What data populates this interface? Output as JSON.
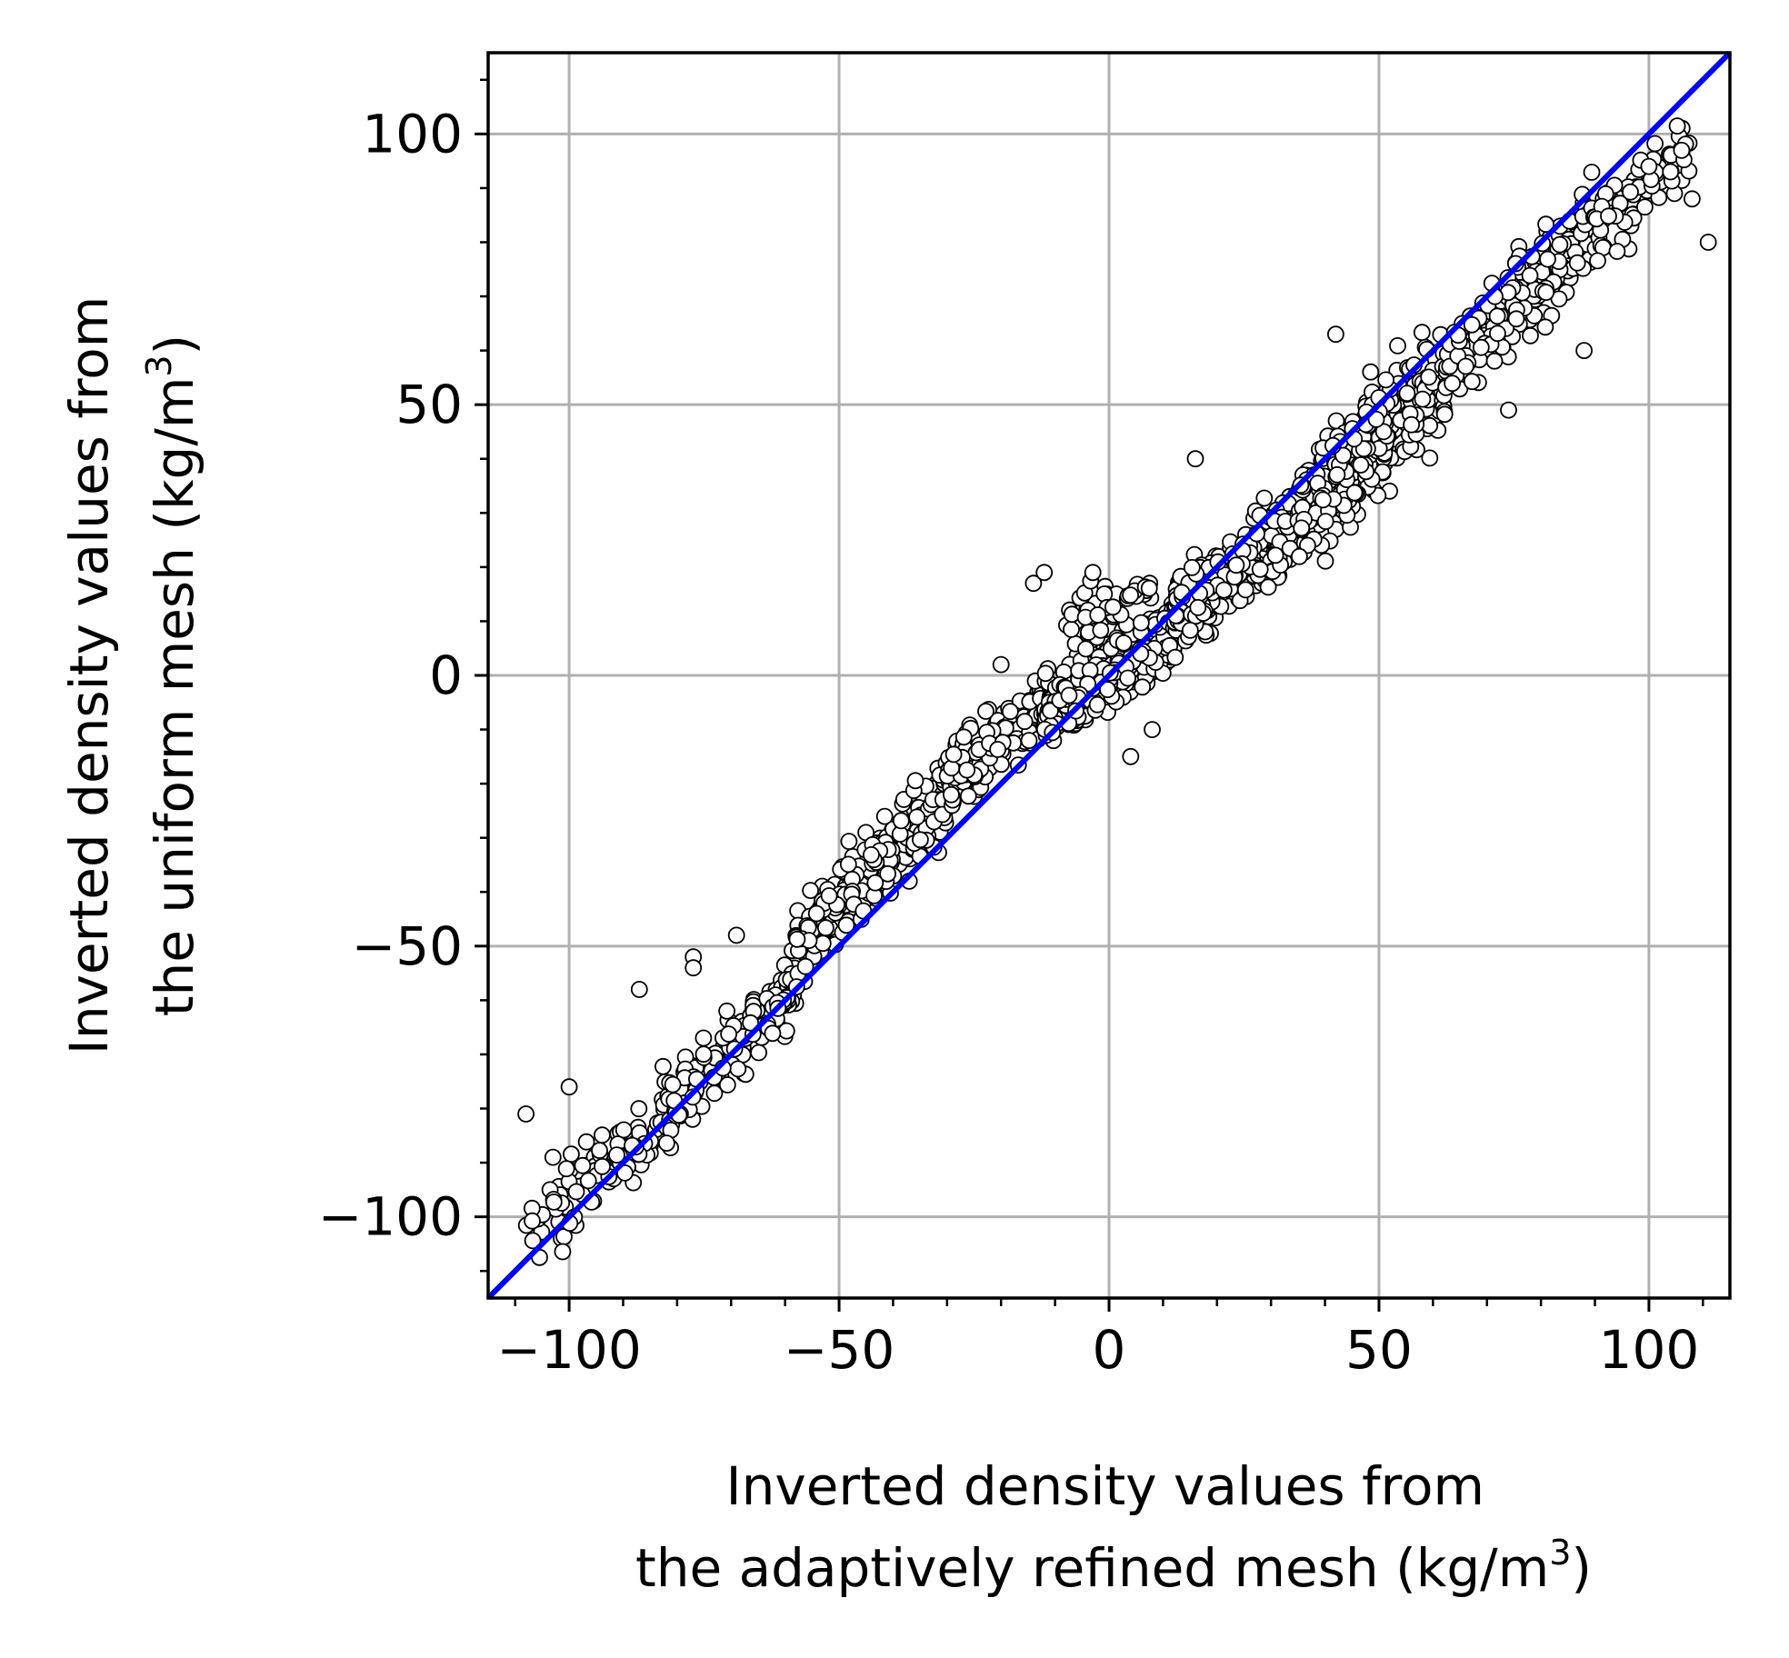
{
  "chart_data": {
    "type": "scatter",
    "title": "",
    "xlabel_lines": [
      "Inverted density values from",
      "the adaptively refined mesh (kg/m",
      "3",
      ")"
    ],
    "ylabel_lines": [
      "Inverted density values from",
      "the uniform mesh (kg/m",
      "3",
      ")"
    ],
    "xlim": [
      -115,
      115
    ],
    "ylim": [
      -115,
      115
    ],
    "x_ticks": [
      -100,
      -50,
      0,
      50,
      100
    ],
    "y_ticks": [
      -100,
      -50,
      0,
      50,
      100
    ],
    "x_tick_labels": [
      "−100",
      "−50",
      "0",
      "50",
      "100"
    ],
    "y_tick_labels": [
      "−100",
      "−50",
      "0",
      "50",
      "100"
    ],
    "minor_tick_step": 10,
    "grid": true,
    "colors": {
      "grid": "#b0b0b0",
      "reference_line": "#0000ff",
      "marker_edge": "#000000",
      "marker_face": "#ffffff"
    },
    "reference_line": {
      "x": [
        -115,
        115
      ],
      "y": [
        -115,
        115
      ]
    },
    "series": [
      {
        "marker": "circle",
        "segments": [
          {
            "x0": -108,
            "x1": -82,
            "slope": 0.95,
            "intercept": -2,
            "spread": 6.5,
            "count": 90
          },
          {
            "x0": -82,
            "x1": -58,
            "slope": 1.0,
            "intercept": 1,
            "spread": 6,
            "count": 140
          },
          {
            "x0": -58,
            "x1": -30,
            "slope": 1.0,
            "intercept": 8,
            "spread": 6.5,
            "count": 260
          },
          {
            "x0": -30,
            "x1": -12,
            "slope": 0.8,
            "intercept": 4,
            "spread": 5.5,
            "count": 200
          },
          {
            "x0": -12,
            "x1": 12,
            "slope": 0.6,
            "intercept": 0.5,
            "spread": 5.5,
            "count": 420
          },
          {
            "x0": -8,
            "x1": 8,
            "slope": 0.3,
            "intercept": 12,
            "spread": 4,
            "count": 60
          },
          {
            "x0": 12,
            "x1": 35,
            "slope": 0.75,
            "intercept": 2,
            "spread": 6,
            "count": 280
          },
          {
            "x0": 35,
            "x1": 62,
            "slope": 0.95,
            "intercept": -4,
            "spread": 9,
            "count": 320
          },
          {
            "x0": 62,
            "x1": 90,
            "slope": 1.0,
            "intercept": -6,
            "spread": 7.5,
            "count": 230
          },
          {
            "x0": 90,
            "x1": 108,
            "slope": 0.95,
            "intercept": -4,
            "spread": 6,
            "count": 70
          }
        ],
        "labeled_points": [
          {
            "x": -108,
            "y": -81
          },
          {
            "x": -103,
            "y": -89
          },
          {
            "x": -100,
            "y": -76
          },
          {
            "x": -87,
            "y": -58
          },
          {
            "x": -77,
            "y": -52
          },
          {
            "x": -77,
            "y": -54
          },
          {
            "x": -69,
            "y": -48
          },
          {
            "x": -20,
            "y": 2
          },
          {
            "x": -14,
            "y": 17
          },
          {
            "x": -12,
            "y": 19
          },
          {
            "x": -3,
            "y": 19
          },
          {
            "x": 4,
            "y": -15
          },
          {
            "x": 8,
            "y": -10
          },
          {
            "x": 16,
            "y": 40
          },
          {
            "x": 42,
            "y": 63
          },
          {
            "x": 74,
            "y": 49
          },
          {
            "x": 88,
            "y": 60
          },
          {
            "x": 100,
            "y": 94
          },
          {
            "x": 104,
            "y": 93
          },
          {
            "x": 108,
            "y": 88
          },
          {
            "x": 111,
            "y": 80
          }
        ]
      }
    ]
  }
}
